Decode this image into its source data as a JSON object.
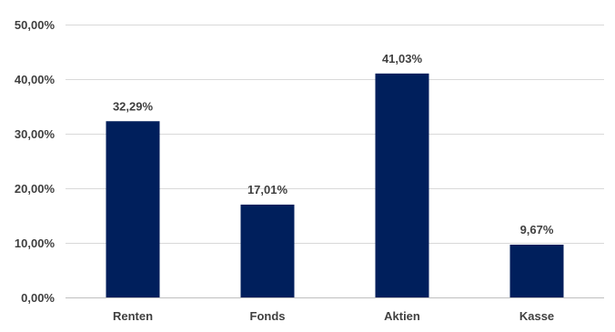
{
  "chart_data": {
    "type": "bar",
    "categories": [
      "Renten",
      "Fonds",
      "Aktien",
      "Kasse"
    ],
    "values": [
      32.29,
      17.01,
      41.03,
      9.67
    ],
    "data_labels": [
      "32,29%",
      "17,01%",
      "41,03%",
      "9,67%"
    ],
    "title": "",
    "xlabel": "",
    "ylabel": "",
    "ylim": [
      0,
      50
    ],
    "y_ticks": [
      0,
      10,
      20,
      30,
      40,
      50
    ],
    "y_tick_labels": [
      "0,00%",
      "10,00%",
      "20,00%",
      "30,00%",
      "40,00%",
      "50,00%"
    ],
    "grid": true,
    "legend": "none",
    "bar_color": "#001f5c"
  }
}
